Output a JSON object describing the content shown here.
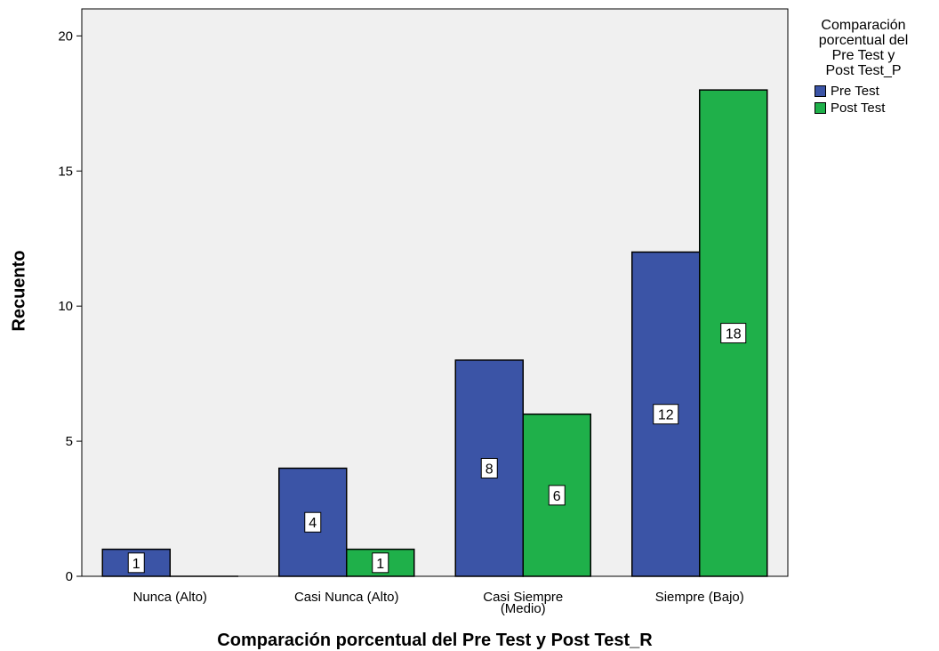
{
  "chart_data": {
    "type": "bar",
    "xlabel": "Comparación porcentual del Pre Test y Post Test_R",
    "ylabel": "Recuento",
    "ylim": [
      0,
      21
    ],
    "yticks": [
      0,
      5,
      10,
      15,
      20
    ],
    "categories": [
      "Nunca (Alto)",
      "Casi Nunca (Alto)",
      "Casi Siempre\n(Medio)",
      "Siempre (Bajo)"
    ],
    "series": [
      {
        "name": "Pre Test",
        "values": [
          1,
          4,
          8,
          12
        ],
        "color": "#3b54a6"
      },
      {
        "name": "Post Test",
        "values": [
          0,
          1,
          6,
          18
        ],
        "color": "#1fb04a"
      }
    ],
    "legend": {
      "title": "Comparación\nporcentual del\nPre Test y\nPost Test_P",
      "placement": "top-right"
    },
    "grid": false,
    "plot_background": "#f0f0f0",
    "data_labels": true
  }
}
